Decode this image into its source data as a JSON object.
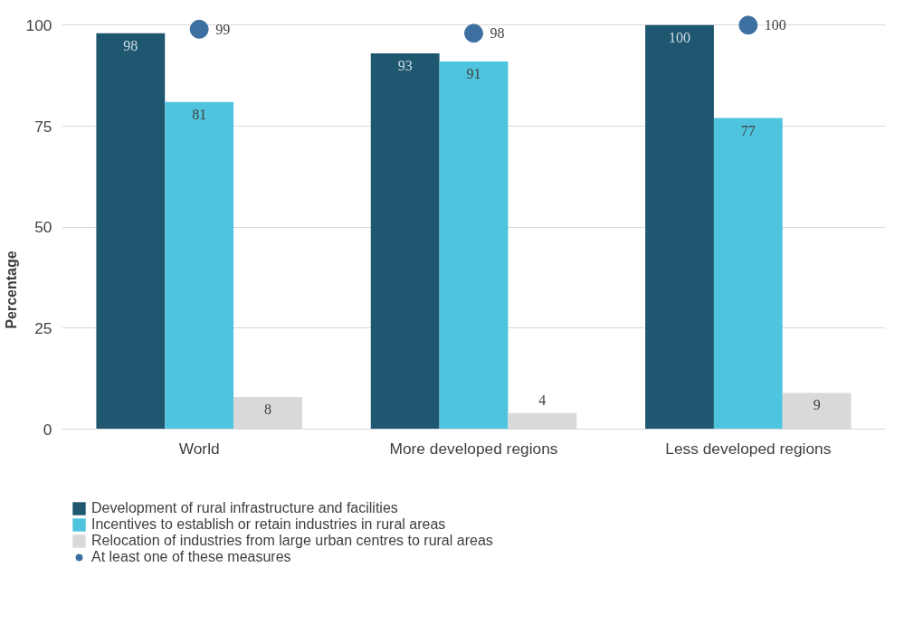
{
  "chart_data": {
    "type": "bar",
    "ylabel": "Percentage",
    "categories": [
      "World",
      "More developed regions",
      "Less developed regions"
    ],
    "series": [
      {
        "name": "Development of rural infrastructure and facilities",
        "color": "#1f5670",
        "values": [
          98,
          93,
          100
        ]
      },
      {
        "name": "Incentives to establish or retain industries in rural areas",
        "color": "#4fc4de",
        "values": [
          81,
          91,
          77
        ]
      },
      {
        "name": "Relocation of industries from large urban centres to rural areas",
        "color": "#d9d9d9",
        "values": [
          8,
          4,
          9
        ]
      },
      {
        "name": "At least one of these measures",
        "type": "scatter",
        "color": "#3d6fa0",
        "x": [
          "World",
          "More developed regions",
          "Less developed regions"
        ],
        "values": [
          99,
          98,
          100
        ]
      }
    ],
    "ylim": [
      0,
      100
    ],
    "yticks": [
      0,
      25,
      50,
      75,
      100
    ],
    "grid": "y",
    "legend": "bottom",
    "data_labels": true
  }
}
